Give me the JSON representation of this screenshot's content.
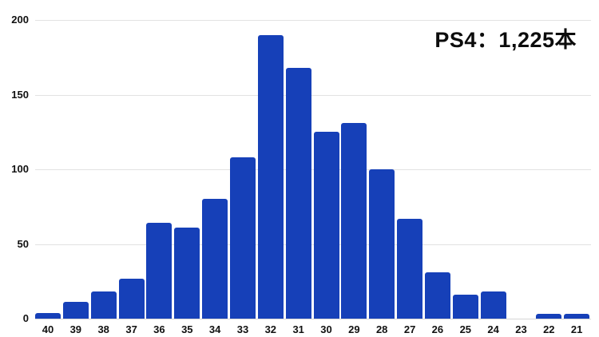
{
  "chart_data": {
    "type": "bar",
    "title": "PS4：1,225本",
    "xlabel": "",
    "ylabel": "",
    "categories": [
      "40",
      "39",
      "38",
      "37",
      "36",
      "35",
      "34",
      "33",
      "32",
      "31",
      "30",
      "29",
      "28",
      "27",
      "26",
      "25",
      "24",
      "23",
      "22",
      "21"
    ],
    "values": [
      4,
      11,
      18,
      27,
      64,
      61,
      80,
      108,
      190,
      168,
      125,
      131,
      100,
      67,
      31,
      16,
      18,
      0,
      3,
      3
    ],
    "ylim": [
      0,
      200
    ],
    "yticks": [
      0,
      50,
      100,
      150,
      200
    ],
    "grid": true,
    "legend": "none",
    "bar_color": "#1640b8"
  }
}
